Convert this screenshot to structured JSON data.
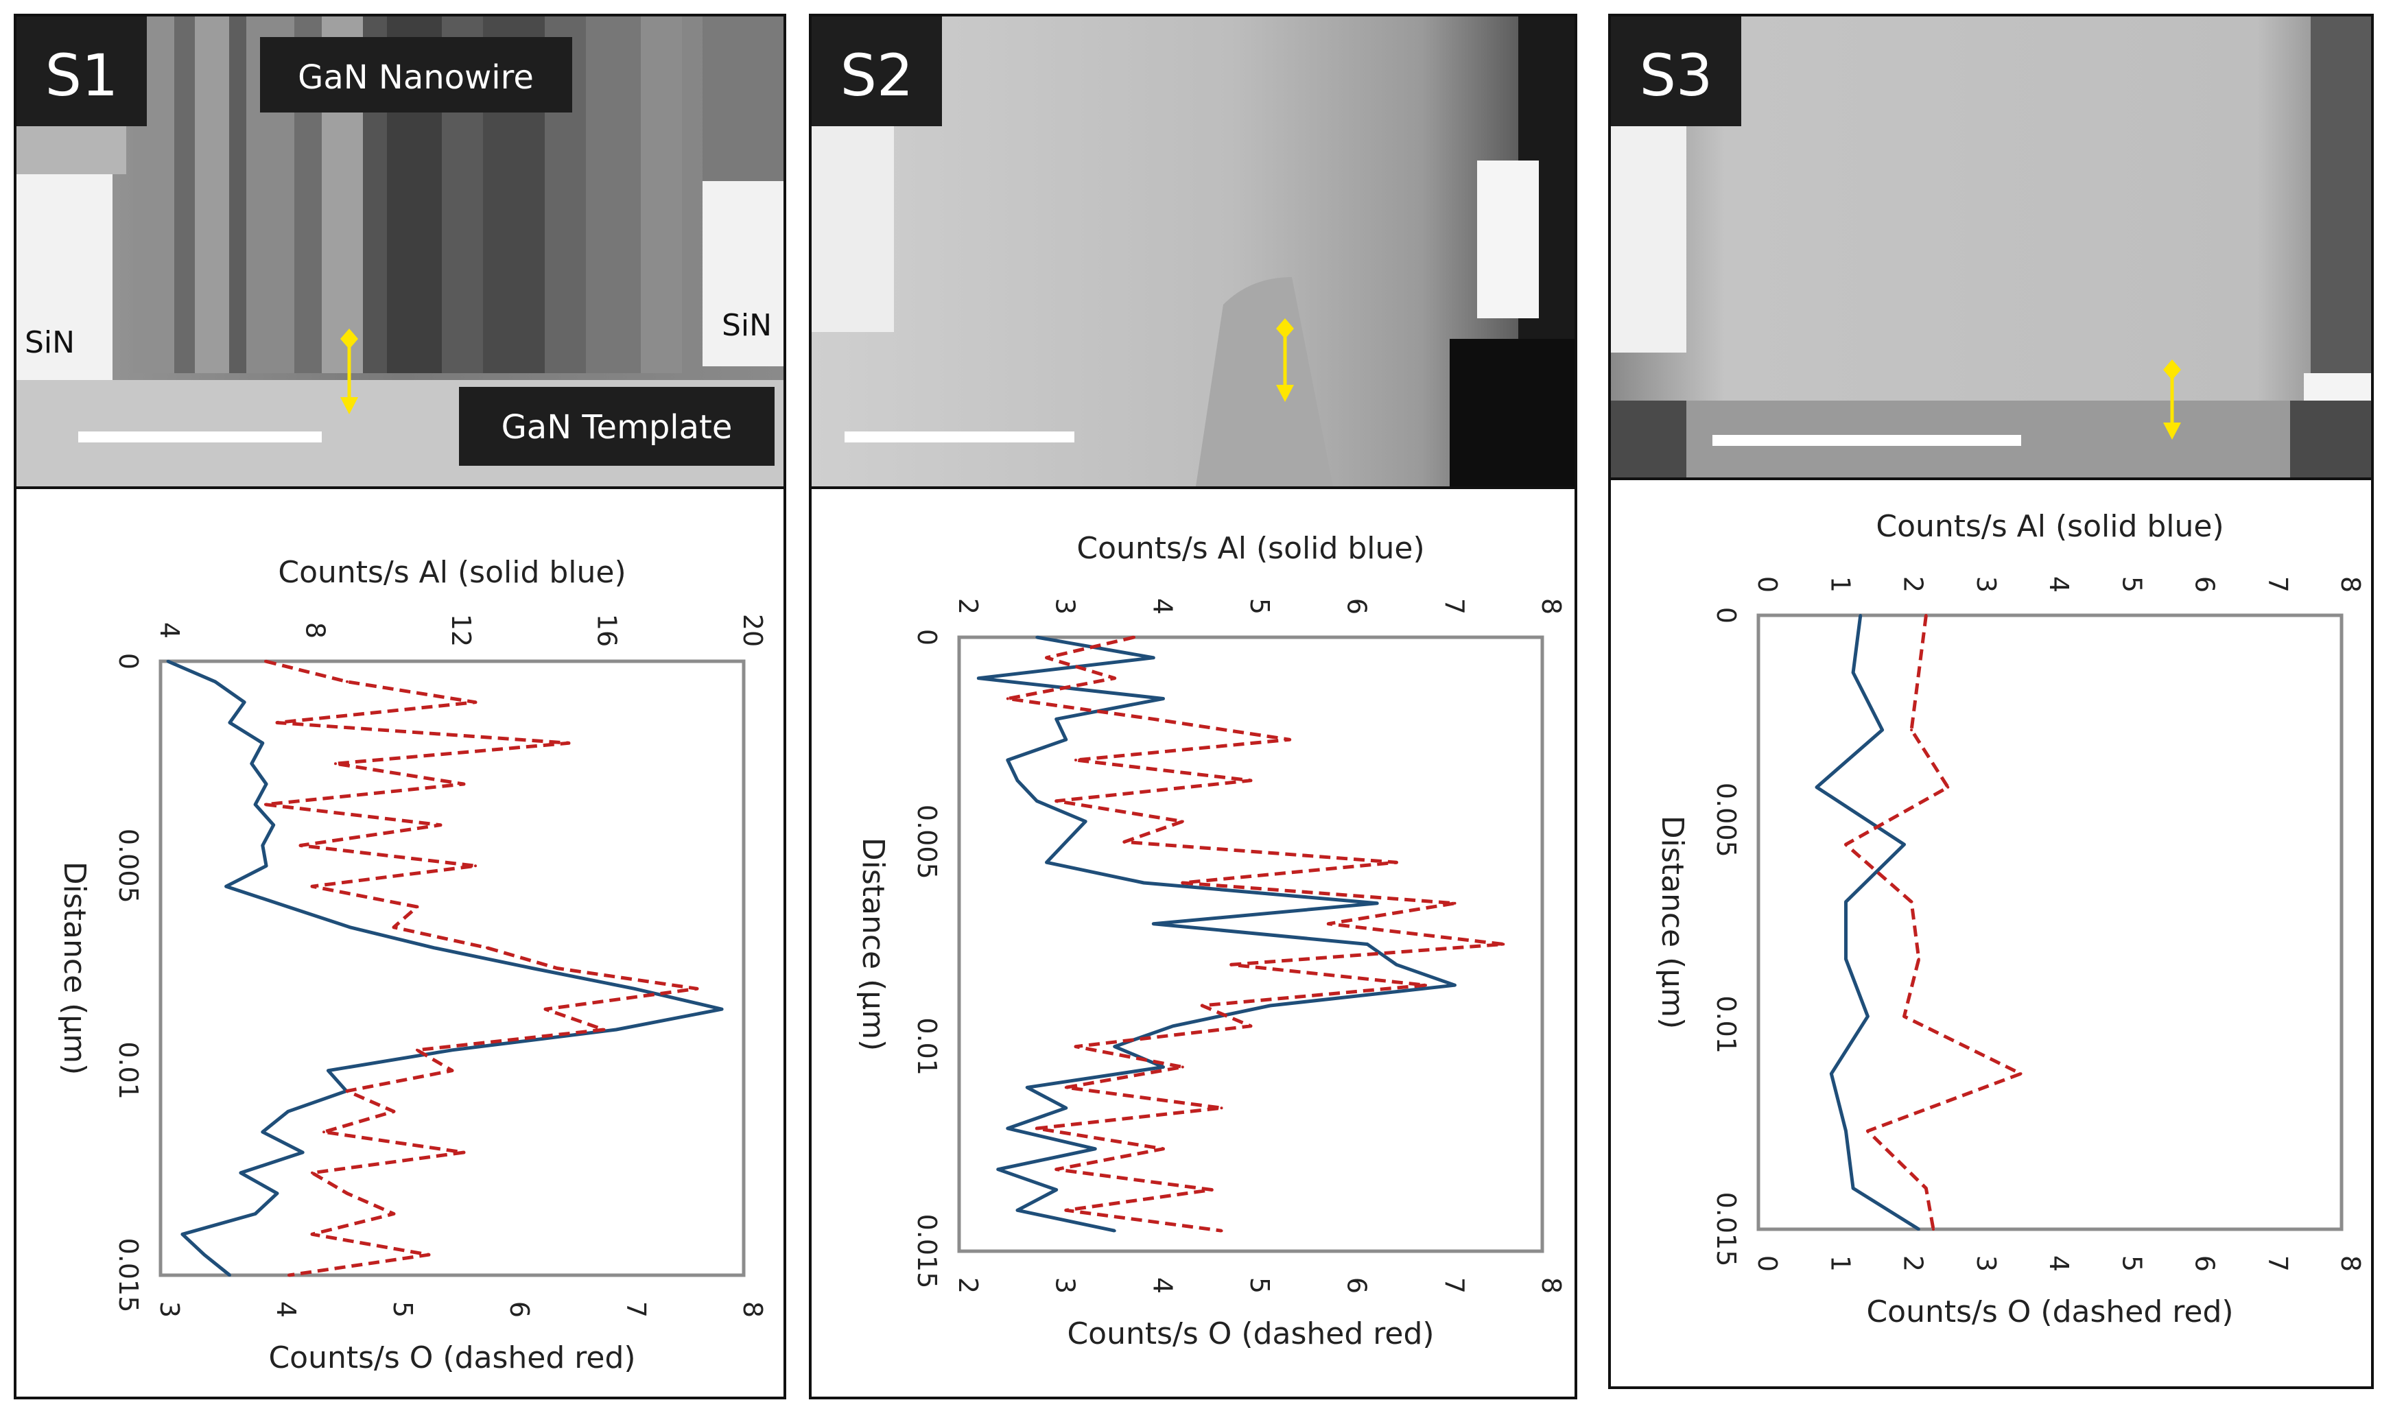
{
  "panels": [
    {
      "id": "S1",
      "label": "S1",
      "image_labels": {
        "top": "GaN Nanowire",
        "bottom": "GaN Template",
        "left": "SiN",
        "right": "SiN"
      }
    },
    {
      "id": "S2",
      "label": "S2",
      "image_labels": {}
    },
    {
      "id": "S3",
      "label": "S3",
      "image_labels": {}
    }
  ],
  "colors": {
    "al_line": "#1f4e79",
    "o_line": "#c0201f",
    "yellow_marker": "#ffe600",
    "label_bg": "#1e1e1e",
    "label_text": "#ffffff"
  },
  "chart_data": [
    {
      "type": "line",
      "panel": "S1",
      "orientation": "rotated-90",
      "xlabel": "Distance (µm)",
      "top_axis_label": "Counts/s Al (solid blue)",
      "bottom_axis_label": "Counts/s O (dashed red)",
      "distance_range": [
        0,
        0.015
      ],
      "distance_ticks": [
        "0",
        "0.005",
        "0.01",
        "0.015"
      ],
      "al_range": [
        4,
        20
      ],
      "al_ticks": [
        "4",
        "8",
        "12",
        "16",
        "20"
      ],
      "o_range": [
        3,
        8
      ],
      "o_ticks": [
        "3",
        "4",
        "5",
        "6",
        "7",
        "8"
      ],
      "series": [
        {
          "name": "Al (solid blue)",
          "style": "solid",
          "axis": "top",
          "distance": [
            0,
            0.0005,
            0.001,
            0.0015,
            0.002,
            0.0025,
            0.003,
            0.0035,
            0.004,
            0.0045,
            0.005,
            0.0055,
            0.006,
            0.0065,
            0.007,
            0.0075,
            0.008,
            0.0085,
            0.009,
            0.0095,
            0.01,
            0.0105,
            0.011,
            0.0115,
            0.012,
            0.0125,
            0.013,
            0.0135,
            0.014,
            0.0145,
            0.015
          ],
          "values": [
            4.2,
            5.5,
            6.3,
            5.9,
            6.8,
            6.5,
            6.9,
            6.6,
            7.1,
            6.8,
            6.9,
            5.8,
            7.5,
            9.2,
            11.5,
            14.2,
            17.0,
            19.4,
            16.5,
            12.0,
            8.6,
            9.1,
            7.5,
            6.8,
            7.9,
            6.2,
            7.2,
            6.6,
            4.6,
            5.2,
            5.9
          ]
        },
        {
          "name": "O (dashed red)",
          "style": "dashed",
          "axis": "bottom",
          "distance": [
            0,
            0.0005,
            0.001,
            0.0015,
            0.002,
            0.0025,
            0.003,
            0.0035,
            0.004,
            0.0045,
            0.005,
            0.0055,
            0.006,
            0.0065,
            0.007,
            0.0075,
            0.008,
            0.0085,
            0.009,
            0.0095,
            0.01,
            0.0105,
            0.011,
            0.0115,
            0.012,
            0.0125,
            0.013,
            0.0135,
            0.014,
            0.0145,
            0.015
          ],
          "values": [
            3.9,
            4.6,
            5.7,
            4.0,
            6.5,
            4.5,
            5.6,
            3.9,
            5.4,
            4.2,
            5.7,
            4.3,
            5.2,
            5.0,
            5.8,
            6.4,
            7.6,
            6.3,
            6.8,
            5.2,
            5.5,
            4.6,
            5.0,
            4.4,
            5.6,
            4.3,
            4.6,
            5.0,
            4.3,
            5.3,
            4.1
          ]
        }
      ]
    },
    {
      "type": "line",
      "panel": "S2",
      "orientation": "rotated-90",
      "xlabel": "Distance (µm)",
      "top_axis_label": "Counts/s Al (solid blue)",
      "bottom_axis_label": "Counts/s O (dashed red)",
      "distance_range": [
        0,
        0.015
      ],
      "distance_ticks": [
        "0",
        "0.005",
        "0.01",
        "0.015"
      ],
      "al_range": [
        2,
        8
      ],
      "al_ticks": [
        "2",
        "3",
        "4",
        "5",
        "6",
        "7",
        "8"
      ],
      "o_range": [
        2,
        8
      ],
      "o_ticks": [
        "2",
        "3",
        "4",
        "5",
        "6",
        "7",
        "8"
      ],
      "series": [
        {
          "name": "Al (solid blue)",
          "style": "solid",
          "axis": "top",
          "distance": [
            0,
            0.0005,
            0.001,
            0.0015,
            0.002,
            0.0025,
            0.003,
            0.0035,
            0.004,
            0.0045,
            0.005,
            0.0055,
            0.006,
            0.0065,
            0.007,
            0.0075,
            0.008,
            0.0085,
            0.009,
            0.0095,
            0.01,
            0.0105,
            0.011,
            0.0115,
            0.012,
            0.0125,
            0.013,
            0.0135,
            0.014,
            0.0145
          ],
          "values": [
            2.8,
            4.0,
            2.2,
            4.1,
            3.0,
            3.1,
            2.5,
            2.6,
            2.8,
            3.3,
            3.1,
            2.9,
            3.9,
            6.3,
            4.0,
            6.2,
            6.5,
            7.1,
            5.2,
            4.2,
            3.6,
            4.1,
            2.7,
            3.1,
            2.5,
            3.4,
            2.4,
            3.0,
            2.6,
            3.6
          ]
        },
        {
          "name": "O (dashed red)",
          "style": "dashed",
          "axis": "bottom",
          "distance": [
            0,
            0.0005,
            0.001,
            0.0015,
            0.002,
            0.0025,
            0.003,
            0.0035,
            0.004,
            0.0045,
            0.005,
            0.0055,
            0.006,
            0.0065,
            0.007,
            0.0075,
            0.008,
            0.0085,
            0.009,
            0.0095,
            0.01,
            0.0105,
            0.011,
            0.0115,
            0.012,
            0.0125,
            0.013,
            0.0135,
            0.014,
            0.0145
          ],
          "values": [
            3.8,
            2.9,
            3.6,
            2.5,
            4.0,
            5.4,
            3.2,
            5.0,
            3.0,
            4.3,
            3.7,
            6.5,
            4.3,
            7.1,
            5.8,
            7.6,
            4.8,
            6.8,
            4.5,
            5.0,
            3.2,
            4.3,
            3.1,
            4.7,
            2.8,
            4.1,
            3.0,
            4.6,
            3.1,
            4.7
          ]
        }
      ]
    },
    {
      "type": "line",
      "panel": "S3",
      "orientation": "rotated-90",
      "xlabel": "Distance (µm)",
      "top_axis_label": "Counts/s Al (solid blue)",
      "bottom_axis_label": "Counts/s O (dashed red)",
      "distance_range": [
        0,
        0.015
      ],
      "distance_ticks": [
        "0",
        "0.005",
        "0.01",
        "0.015"
      ],
      "al_range": [
        0,
        8
      ],
      "al_ticks": [
        "0",
        "1",
        "2",
        "3",
        "4",
        "5",
        "6",
        "7",
        "8"
      ],
      "o_range": [
        0,
        8
      ],
      "o_ticks": [
        "0",
        "1",
        "2",
        "3",
        "4",
        "5",
        "6",
        "7",
        "8"
      ],
      "series": [
        {
          "name": "Al (solid blue)",
          "style": "solid",
          "axis": "top",
          "distance": [
            0,
            0.0014,
            0.0028,
            0.0042,
            0.0056,
            0.007,
            0.0084,
            0.0098,
            0.0112,
            0.0126,
            0.014,
            0.015
          ],
          "values": [
            1.4,
            1.3,
            1.7,
            0.8,
            2.0,
            1.2,
            1.2,
            1.5,
            1.0,
            1.2,
            1.3,
            2.2
          ]
        },
        {
          "name": "O (dashed red)",
          "style": "dashed",
          "axis": "bottom",
          "distance": [
            0,
            0.0014,
            0.0028,
            0.0042,
            0.0056,
            0.007,
            0.0084,
            0.0098,
            0.0112,
            0.0126,
            0.014,
            0.015
          ],
          "values": [
            2.3,
            2.2,
            2.1,
            2.6,
            1.2,
            2.1,
            2.2,
            2.0,
            3.6,
            1.5,
            2.3,
            2.4
          ]
        }
      ]
    }
  ]
}
